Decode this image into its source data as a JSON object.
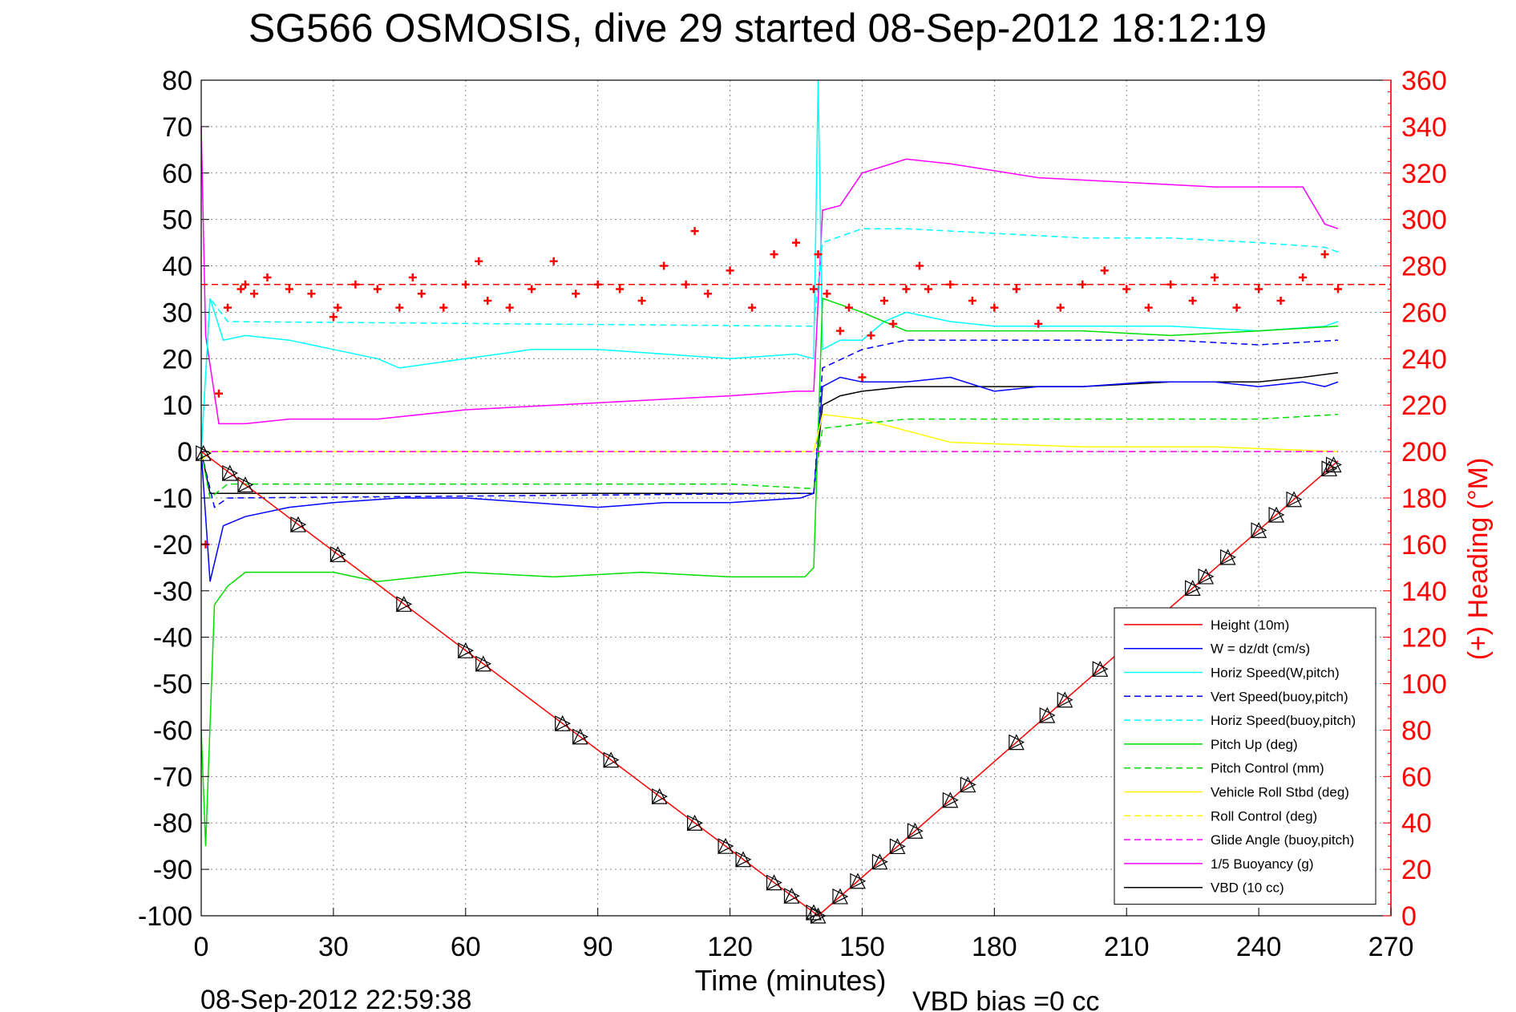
{
  "footer": {
    "timestamp": "08-Sep-2012 22:59:38",
    "vbd_bias": "VBD bias =0 cc"
  },
  "chart_data": {
    "type": "line",
    "title": "SG566 OSMOSIS, dive 29 started 08-Sep-2012 18:12:19",
    "xlabel": "Time (minutes)",
    "ylabel": "",
    "y2label": "(+) Heading (°M)",
    "xlim": [
      0,
      270
    ],
    "ylim": [
      -100,
      80
    ],
    "y2lim": [
      0,
      360
    ],
    "xticks": [
      0,
      30,
      60,
      90,
      120,
      150,
      180,
      210,
      240,
      270
    ],
    "yticks": [
      80,
      70,
      60,
      50,
      40,
      30,
      20,
      10,
      0,
      -10,
      -20,
      -30,
      -40,
      -50,
      -60,
      -70,
      -80,
      -90,
      -100
    ],
    "y2ticks": [
      360,
      340,
      320,
      300,
      280,
      260,
      240,
      220,
      200,
      180,
      160,
      140,
      120,
      100,
      80,
      60,
      40,
      20,
      0
    ],
    "grid": true,
    "legend_position": "bottom-right",
    "colors": {
      "height": "#ff0000",
      "w": "#0000ff",
      "horiz_speed_w": "#00ffff",
      "vert_speed_buoy": "#0000ff",
      "horiz_speed_buoy": "#00ffff",
      "pitch_up": "#00dd00",
      "pitch_control": "#00dd00",
      "roll": "#ffff00",
      "roll_control": "#ffff00",
      "glide_angle": "#ff00ff",
      "buoyancy": "#ff00ff",
      "vbd": "#000000",
      "heading": "#ff0000",
      "right_axis": "#ff0000"
    },
    "series": [
      {
        "name": "Height (10m)",
        "style": "solid",
        "color": "#ff0000",
        "x": [
          0,
          140,
          258
        ],
        "y": [
          0,
          -100,
          -2
        ]
      },
      {
        "name": "W = dz/dt (cm/s)",
        "style": "solid",
        "color": "#0000ff",
        "x": [
          0,
          2,
          5,
          10,
          20,
          30,
          45,
          60,
          75,
          90,
          105,
          120,
          136,
          139,
          141,
          145,
          150,
          160,
          170,
          180,
          190,
          200,
          215,
          230,
          240,
          250,
          255,
          258
        ],
        "y": [
          0,
          -28,
          -16,
          -14,
          -12,
          -11,
          -10,
          -10,
          -11,
          -12,
          -11,
          -11,
          -10,
          -9,
          14,
          16,
          15,
          15,
          16,
          13,
          14,
          14,
          15,
          15,
          14,
          15,
          14,
          15
        ]
      },
      {
        "name": "Horiz Speed(W,pitch)",
        "style": "solid",
        "color": "#00ffff",
        "x": [
          0,
          2,
          5,
          10,
          20,
          30,
          40,
          45,
          60,
          75,
          90,
          105,
          120,
          135,
          139,
          140,
          141,
          145,
          150,
          155,
          160,
          170,
          180,
          200,
          220,
          240,
          255,
          258
        ],
        "y": [
          0,
          33,
          24,
          25,
          24,
          22,
          20,
          18,
          20,
          22,
          22,
          21,
          20,
          21,
          20,
          80,
          22,
          24,
          24,
          28,
          30,
          28,
          27,
          27,
          27,
          26,
          27,
          28
        ]
      },
      {
        "name": "Vert Speed(buoy,pitch)",
        "style": "dashed",
        "color": "#0000ff",
        "x": [
          0,
          3,
          6,
          139,
          141,
          150,
          160,
          180,
          200,
          220,
          240,
          258
        ],
        "y": [
          0,
          -12,
          -10,
          -9,
          18,
          22,
          24,
          24,
          24,
          24,
          23,
          24
        ]
      },
      {
        "name": "Horiz Speed(buoy,pitch)",
        "style": "dashed",
        "color": "#00ffff",
        "x": [
          0,
          2,
          6,
          139,
          141,
          150,
          160,
          180,
          200,
          220,
          240,
          255,
          258
        ],
        "y": [
          0,
          33,
          28,
          27,
          45,
          48,
          48,
          47,
          46,
          46,
          45,
          44,
          43
        ]
      },
      {
        "name": "Pitch Up (deg)",
        "style": "solid",
        "color": "#00dd00",
        "x": [
          0,
          1,
          3,
          6,
          10,
          20,
          30,
          40,
          60,
          80,
          100,
          120,
          137,
          139,
          141,
          150,
          160,
          180,
          200,
          220,
          240,
          258
        ],
        "y": [
          -60,
          -85,
          -33,
          -29,
          -26,
          -26,
          -26,
          -28,
          -26,
          -27,
          -26,
          -27,
          -27,
          -25,
          33,
          30,
          26,
          26,
          26,
          25,
          26,
          27
        ]
      },
      {
        "name": "Pitch Control (mm)",
        "style": "dashed",
        "color": "#00dd00",
        "x": [
          0,
          2,
          6,
          30,
          60,
          90,
          120,
          139,
          141,
          150,
          160,
          200,
          240,
          258
        ],
        "y": [
          0,
          -10,
          -7,
          -7,
          -7,
          -7,
          -7,
          -8,
          5,
          6,
          7,
          7,
          7,
          8
        ]
      },
      {
        "name": "Vehicle Roll Stbd (deg)",
        "style": "solid",
        "color": "#ffff00",
        "x": [
          0,
          2,
          10,
          30,
          60,
          90,
          120,
          139,
          141,
          150,
          170,
          200,
          230,
          258
        ],
        "y": [
          -2,
          0,
          0,
          0,
          0,
          0,
          0,
          0,
          8,
          7,
          2,
          1,
          1,
          0
        ]
      },
      {
        "name": "Roll Control (deg)",
        "style": "dashed",
        "color": "#ffff00",
        "x": [
          0,
          2,
          10,
          60,
          120,
          139,
          141,
          200,
          258
        ],
        "y": [
          0,
          0,
          0,
          0,
          0,
          0,
          0,
          0,
          0
        ]
      },
      {
        "name": "Glide Angle (buoy,pitch)",
        "style": "dashed",
        "color": "#ff00ff",
        "x": [
          0,
          258
        ],
        "y": [
          0,
          0
        ]
      },
      {
        "name": "1/5 Buoyancy (g)",
        "style": "solid",
        "color": "#ff00ff",
        "x": [
          0,
          1,
          4,
          10,
          20,
          40,
          60,
          80,
          100,
          120,
          135,
          139,
          141,
          145,
          150,
          160,
          170,
          190,
          210,
          230,
          250,
          255,
          258
        ],
        "y": [
          70,
          25,
          6,
          6,
          7,
          7,
          9,
          10,
          11,
          12,
          13,
          13,
          52,
          53,
          60,
          63,
          62,
          59,
          58,
          57,
          57,
          49,
          48
        ]
      },
      {
        "name": "VBD (10 cc)",
        "style": "solid",
        "color": "#000000",
        "x": [
          0,
          2,
          6,
          139,
          141,
          145,
          150,
          160,
          180,
          200,
          220,
          240,
          250,
          258
        ],
        "y": [
          0,
          -9,
          -9,
          -9,
          10,
          12,
          13,
          14,
          14,
          14,
          15,
          15,
          16,
          17
        ]
      }
    ],
    "heading": {
      "name": "(+) Heading (°M)",
      "reference_line": 272,
      "x": [
        1,
        4,
        6,
        9,
        10,
        12,
        15,
        20,
        25,
        30,
        31,
        35,
        40,
        45,
        48,
        50,
        55,
        60,
        63,
        65,
        70,
        75,
        80,
        85,
        90,
        95,
        100,
        105,
        110,
        112,
        115,
        120,
        125,
        130,
        135,
        139,
        140,
        142,
        145,
        147,
        150,
        152,
        155,
        157,
        160,
        163,
        165,
        170,
        175,
        180,
        185,
        190,
        195,
        200,
        205,
        210,
        215,
        220,
        225,
        230,
        235,
        240,
        245,
        250,
        255,
        258
      ],
      "y": [
        160,
        225,
        262,
        270,
        272,
        268,
        275,
        270,
        268,
        258,
        262,
        272,
        270,
        262,
        275,
        268,
        262,
        272,
        282,
        265,
        262,
        270,
        282,
        268,
        272,
        270,
        265,
        280,
        272,
        295,
        268,
        278,
        262,
        285,
        290,
        270,
        285,
        268,
        252,
        262,
        232,
        250,
        265,
        255,
        270,
        280,
        270,
        272,
        265,
        262,
        270,
        255,
        262,
        272,
        278,
        270,
        262,
        272,
        265,
        275,
        262,
        270,
        265,
        275,
        285,
        270
      ]
    },
    "markers": {
      "description": "",
      "x": [
        0.5,
        6.5,
        10,
        22,
        31,
        46,
        60,
        64,
        82,
        86,
        93,
        104,
        112,
        119,
        123,
        130,
        134,
        139,
        140,
        145,
        149,
        154,
        158,
        162,
        170,
        174,
        185,
        192,
        196,
        204,
        210,
        225,
        228,
        233,
        240,
        244,
        248,
        256,
        257
      ]
    }
  }
}
